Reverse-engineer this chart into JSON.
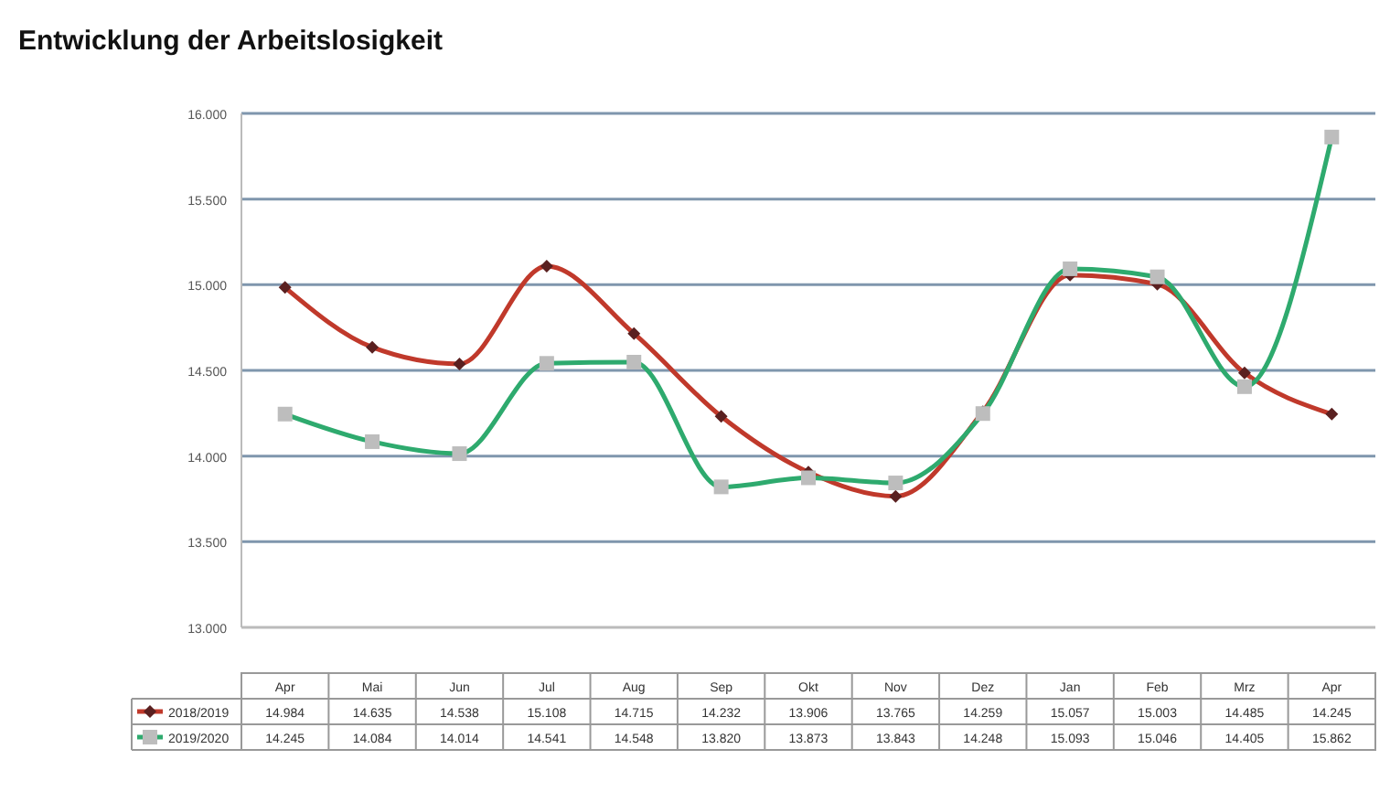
{
  "chart_data": {
    "type": "line",
    "title": "Entwicklung der Arbeitslosigkeit",
    "categories": [
      "Apr",
      "Mai",
      "Jun",
      "Jul",
      "Aug",
      "Sep",
      "Okt",
      "Nov",
      "Dez",
      "Jan",
      "Feb",
      "Mrz",
      "Apr"
    ],
    "series": [
      {
        "name": "2018/2019",
        "color": "#c0392b",
        "marker": "diamond",
        "values": [
          14984,
          14635,
          14538,
          15108,
          14715,
          14232,
          13906,
          13765,
          14259,
          15057,
          15003,
          14485,
          14245
        ],
        "value_labels": [
          "14.984",
          "14.635",
          "14.538",
          "15.108",
          "14.715",
          "14.232",
          "13.906",
          "13.765",
          "14.259",
          "15.057",
          "15.003",
          "14.485",
          "14.245"
        ]
      },
      {
        "name": "2019/2020",
        "color": "#2eaa6e",
        "marker": "square",
        "values": [
          14245,
          14084,
          14014,
          14541,
          14548,
          13820,
          13873,
          13843,
          14248,
          15093,
          15046,
          14405,
          15862
        ],
        "value_labels": [
          "14.245",
          "14.084",
          "14.014",
          "14.541",
          "14.548",
          "13.820",
          "13.873",
          "13.843",
          "14.248",
          "15.093",
          "15.046",
          "14.405",
          "15.862"
        ]
      }
    ],
    "ylim": [
      13000,
      16000
    ],
    "yticks": [
      {
        "value": 13000,
        "label": "13.000"
      },
      {
        "value": 13500,
        "label": "13.500"
      },
      {
        "value": 14000,
        "label": "14.000"
      },
      {
        "value": 14500,
        "label": "14.500"
      },
      {
        "value": 15000,
        "label": "15.000"
      },
      {
        "value": 15500,
        "label": "15.500"
      },
      {
        "value": 16000,
        "label": "16.000"
      }
    ],
    "grid": "y",
    "legend": "bottom",
    "data_labels": true
  }
}
